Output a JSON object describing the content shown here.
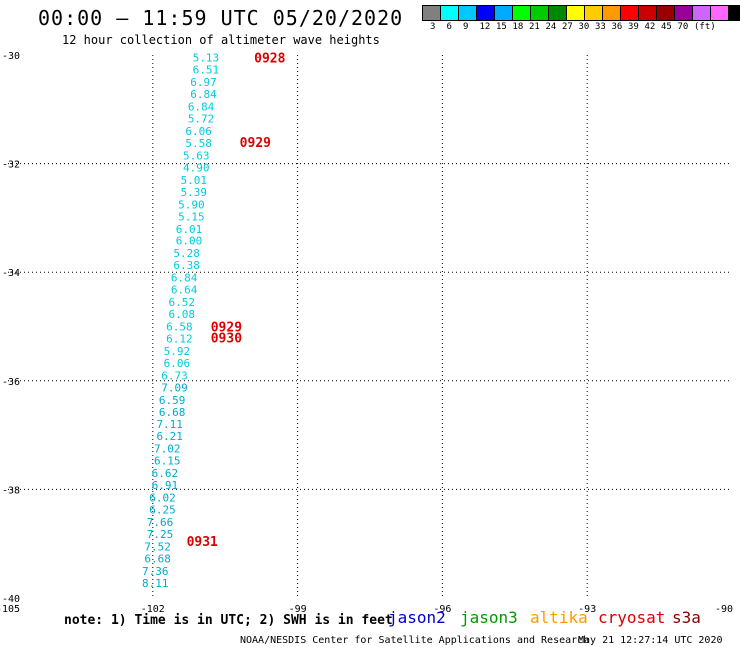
{
  "header": {
    "title": "00:00 – 11:59 UTC 05/20/2020",
    "subtitle": "12 hour collection of altimeter wave heights"
  },
  "colorbar": {
    "swatches": [
      "#808080",
      "#00ffff",
      "#00c8ff",
      "#0000ff",
      "#00aaff",
      "#00ff00",
      "#00cc00",
      "#008800",
      "#ffff00",
      "#ffcc00",
      "#ff9900",
      "#ff0000",
      "#cc0000",
      "#990000",
      "#990099",
      "#cc66ff",
      "#ff66ff",
      "#000000"
    ],
    "labels": [
      "3",
      "6",
      "9",
      "12",
      "15",
      "18",
      "21",
      "24",
      "27",
      "30",
      "33",
      "36",
      "39",
      "42",
      "45",
      "70",
      "(ft)"
    ]
  },
  "chart_data": {
    "type": "scatter",
    "title": "12 hour collection of altimeter wave heights",
    "xlabel": "",
    "ylabel": "",
    "xlim": [
      -105,
      -90
    ],
    "ylim": [
      -40,
      -30
    ],
    "x_ticks": [
      "-105",
      "-102",
      "-99",
      "-96",
      "-93",
      "-90"
    ],
    "y_ticks": [
      "-30",
      "-32",
      "-34",
      "-36",
      "-38",
      "-40"
    ],
    "grid": true,
    "series": [
      {
        "name": "cryosat",
        "color": "#00ccdd",
        "points": [
          {
            "lon": -100.9,
            "lat": -30.05,
            "v": "5.13"
          },
          {
            "lon": -100.9,
            "lat": -30.27,
            "v": "6.51"
          },
          {
            "lon": -100.95,
            "lat": -30.5,
            "v": "6.97"
          },
          {
            "lon": -100.95,
            "lat": -30.72,
            "v": "6.84"
          },
          {
            "lon": -101.0,
            "lat": -30.95,
            "v": "6.84"
          },
          {
            "lon": -101.0,
            "lat": -31.17,
            "v": "5.72"
          },
          {
            "lon": -101.05,
            "lat": -31.4,
            "v": "6.06"
          },
          {
            "lon": -101.05,
            "lat": -31.62,
            "v": "5.58"
          },
          {
            "lon": -101.1,
            "lat": -31.85,
            "v": "5.63"
          },
          {
            "lon": -101.1,
            "lat": -32.07,
            "v": "4.90"
          },
          {
            "lon": -101.15,
            "lat": -32.3,
            "v": "5.01"
          },
          {
            "lon": -101.15,
            "lat": -32.52,
            "v": "5.39"
          },
          {
            "lon": -101.2,
            "lat": -32.75,
            "v": "5.90"
          },
          {
            "lon": -101.2,
            "lat": -32.97,
            "v": "5.15"
          },
          {
            "lon": -101.25,
            "lat": -33.2,
            "v": "6.01"
          },
          {
            "lon": -101.25,
            "lat": -33.42,
            "v": "6.00"
          },
          {
            "lon": -101.3,
            "lat": -33.65,
            "v": "5.28"
          },
          {
            "lon": -101.3,
            "lat": -33.87,
            "v": "6.38"
          },
          {
            "lon": -101.35,
            "lat": -34.1,
            "v": "6.84"
          },
          {
            "lon": -101.35,
            "lat": -34.32,
            "v": "6.64"
          },
          {
            "lon": -101.4,
            "lat": -34.55,
            "v": "6.52"
          },
          {
            "lon": -101.4,
            "lat": -34.77,
            "v": "6.08"
          },
          {
            "lon": -101.45,
            "lat": -35.0,
            "v": "6.58"
          },
          {
            "lon": -101.45,
            "lat": -35.22,
            "v": "6.12"
          },
          {
            "lon": -101.5,
            "lat": -35.45,
            "v": "5.92"
          },
          {
            "lon": -101.5,
            "lat": -35.67,
            "v": "6.06"
          },
          {
            "lon": -101.55,
            "lat": -35.9,
            "v": "6.73"
          }
        ]
      },
      {
        "name": "cryosat",
        "color": "#00aacc",
        "points": [
          {
            "lon": -101.55,
            "lat": -36.12,
            "v": "7.09"
          },
          {
            "lon": -101.6,
            "lat": -36.35,
            "v": "6.59"
          },
          {
            "lon": -101.6,
            "lat": -36.57,
            "v": "6.68"
          },
          {
            "lon": -101.65,
            "lat": -36.8,
            "v": "7.11"
          },
          {
            "lon": -101.65,
            "lat": -37.02,
            "v": "6.21"
          },
          {
            "lon": -101.7,
            "lat": -37.25,
            "v": "7.02"
          },
          {
            "lon": -101.7,
            "lat": -37.47,
            "v": "6.15"
          },
          {
            "lon": -101.75,
            "lat": -37.7,
            "v": "6.62"
          },
          {
            "lon": -101.75,
            "lat": -37.92,
            "v": "6.91"
          },
          {
            "lon": -101.8,
            "lat": -38.15,
            "v": "6.02"
          },
          {
            "lon": -101.8,
            "lat": -38.37,
            "v": "6.25"
          },
          {
            "lon": -101.85,
            "lat": -38.6,
            "v": "7.66"
          },
          {
            "lon": -101.85,
            "lat": -38.82,
            "v": "7.25"
          },
          {
            "lon": -101.9,
            "lat": -39.05,
            "v": "7.52"
          },
          {
            "lon": -101.9,
            "lat": -39.27,
            "v": "6.68"
          },
          {
            "lon": -101.95,
            "lat": -39.5,
            "v": "7.36"
          },
          {
            "lon": -101.95,
            "lat": -39.72,
            "v": "8.11"
          }
        ]
      }
    ],
    "time_labels": [
      {
        "lon": -99.9,
        "lat": -30.05,
        "text": "0928"
      },
      {
        "lon": -100.2,
        "lat": -31.6,
        "text": "0929"
      },
      {
        "lon": -100.8,
        "lat": -35.0,
        "text": "0929"
      },
      {
        "lon": -100.8,
        "lat": -35.2,
        "text": "0930"
      },
      {
        "lon": -101.3,
        "lat": -38.95,
        "text": "0931"
      }
    ],
    "time_label_color": "#dd0000"
  },
  "footer": {
    "note": "note: 1) Time is in UTC; 2) SWH is in feet",
    "legend": [
      {
        "label": "jason2",
        "color": "#0000cc"
      },
      {
        "label": "jason3",
        "color": "#009900"
      },
      {
        "label": "altika",
        "color": "#ff9900"
      },
      {
        "label": "cryosat",
        "color": "#dd0000"
      },
      {
        "label": "s3a",
        "color": "#880000"
      }
    ],
    "credit": "NOAA/NESDIS Center for Satellite Applications and Research",
    "timestamp": "May 21 12:27:14 UTC 2020"
  }
}
